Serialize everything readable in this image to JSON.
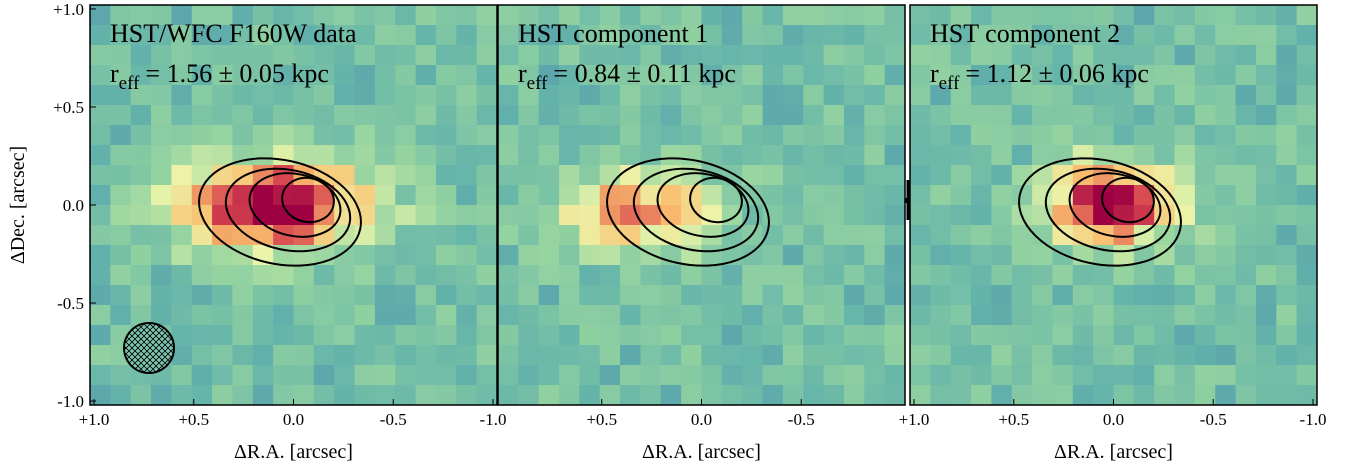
{
  "chart_data": [
    {
      "type": "heatmap",
      "title": "HST/WFC F160W data",
      "subtitle": {
        "symbol": "r",
        "subscript": "eff",
        "text": "= 1.56 ± 0.05 kpc"
      },
      "xlabel": "ΔR.A. [arcsec]",
      "ylabel": "ΔDec. [arcsec]",
      "xlim": [
        1.02,
        -1.02
      ],
      "ylim": [
        -1.02,
        1.02
      ],
      "xticks": [
        {
          "value": 1,
          "label": "+1.0"
        },
        {
          "value": 0.5,
          "label": "+0.5"
        },
        {
          "value": 0,
          "label": "0.0"
        },
        {
          "value": -0.5,
          "label": "-0.5"
        },
        {
          "value": -1,
          "label": "-1.0"
        }
      ],
      "yticks": [
        {
          "value": -1,
          "label": "-1.0"
        },
        {
          "value": -0.5,
          "label": "-0.5"
        },
        {
          "value": 0,
          "label": "0.0"
        },
        {
          "value": 0.5,
          "label": "+0.5"
        },
        {
          "value": 1,
          "label": "+1.0"
        }
      ]
    },
    {
      "type": "heatmap",
      "title": "HST component 1",
      "subtitle": {
        "symbol": "r",
        "subscript": "eff",
        "text": "= 0.84 ± 0.11 kpc"
      },
      "xlabel": "ΔR.A. [arcsec]",
      "xlim": [
        1.02,
        -1.02
      ],
      "ylim": [
        -1.02,
        1.02
      ],
      "xticks": [
        {
          "value": 0.5,
          "label": "+0.5"
        },
        {
          "value": 0,
          "label": "0.0"
        },
        {
          "value": -0.5,
          "label": "-0.5"
        }
      ]
    },
    {
      "type": "heatmap",
      "title": "HST component 2",
      "subtitle": {
        "symbol": "r",
        "subscript": "eff",
        "text": "= 1.12 ± 0.06 kpc"
      },
      "xlabel": "ΔR.A. [arcsec]",
      "xlim": [
        1.02,
        -1.02
      ],
      "ylim": [
        -1.02,
        1.02
      ],
      "xticks": [
        {
          "value": 1,
          "label": "+1.0"
        },
        {
          "value": 0.5,
          "label": "+0.5"
        },
        {
          "value": 0,
          "label": "0.0"
        },
        {
          "value": -0.5,
          "label": "-0.5"
        },
        {
          "value": -1,
          "label": "-1.0"
        }
      ]
    }
  ]
}
